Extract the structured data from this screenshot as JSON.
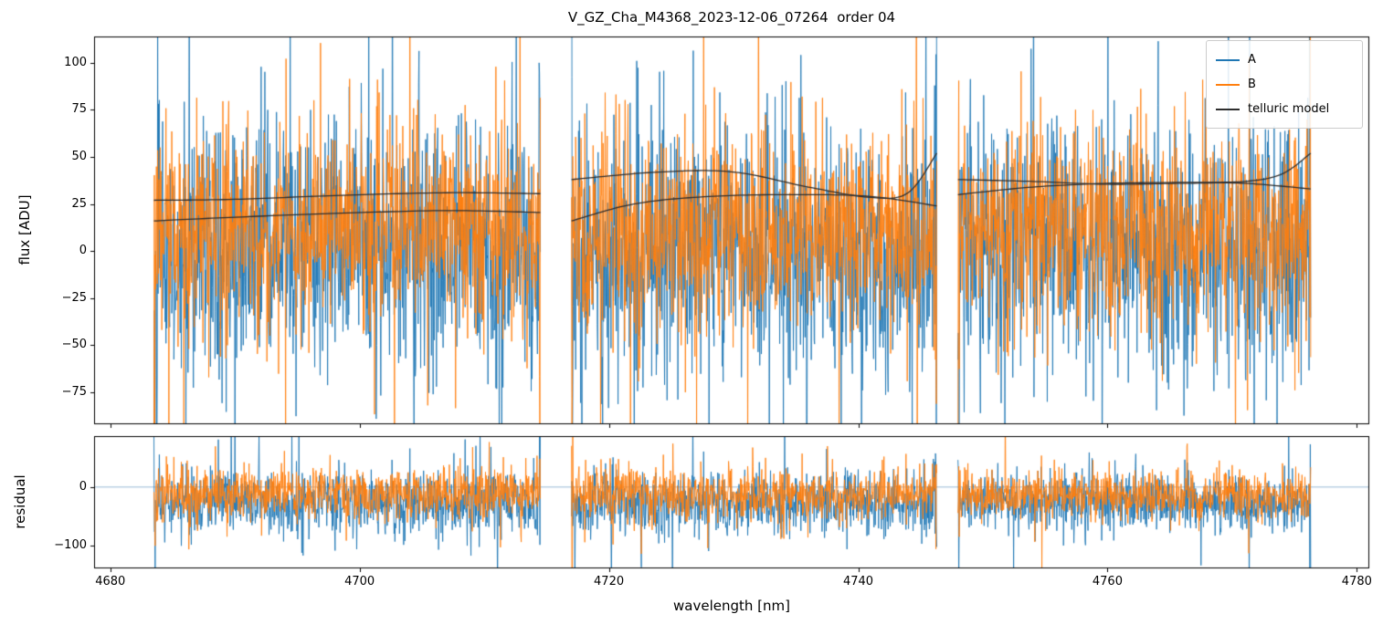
{
  "chart_data": {
    "type": "line",
    "title": "V_GZ_Cha_M4368_2023-12-06_07264  order 04",
    "xlabel": "wavelength [nm]",
    "xlim": [
      4678.7,
      4781.0
    ],
    "xticks": [
      4680,
      4700,
      4720,
      4740,
      4760,
      4780
    ],
    "panels": [
      {
        "id": "flux",
        "ylabel": "flux [ADU]",
        "ylim": [
          -92,
          114
        ],
        "yticks": [
          100,
          75,
          50,
          25,
          0,
          -25,
          -50,
          -75
        ],
        "zero_line": false
      },
      {
        "id": "residual",
        "ylabel": "residual",
        "ylim": [
          -139,
          87
        ],
        "yticks": [
          0,
          -100
        ],
        "zero_line": true,
        "zero_line_color": "#7fa8cc"
      }
    ],
    "legend": [
      {
        "label": "A",
        "color": "#1f77b4"
      },
      {
        "label": "B",
        "color": "#ff7f0e"
      },
      {
        "label": "telluric model",
        "color": "#2e2e2e"
      }
    ],
    "segments": [
      {
        "x_start": 4683.5,
        "x_end": 4714.5
      },
      {
        "x_start": 4717.0,
        "x_end": 4746.3
      },
      {
        "x_start": 4748.0,
        "x_end": 4776.3
      }
    ],
    "telluric_model": {
      "color": "#2e2e2e",
      "segments": [
        {
          "curves": [
            [
              [
                4683.5,
                16
              ],
              [
                4690,
                18
              ],
              [
                4698,
                20
              ],
              [
                4707,
                21.5
              ],
              [
                4714.5,
                20.5
              ]
            ],
            [
              [
                4683.5,
                27
              ],
              [
                4690,
                27.5
              ],
              [
                4698,
                29.5
              ],
              [
                4707,
                31
              ],
              [
                4714.5,
                30.5
              ]
            ]
          ]
        },
        {
          "curves": [
            [
              [
                4717,
                16
              ],
              [
                4722,
                25
              ],
              [
                4728,
                29
              ],
              [
                4735,
                30
              ],
              [
                4741,
                29
              ],
              [
                4746.3,
                24
              ]
            ],
            [
              [
                4717,
                38
              ],
              [
                4724,
                42
              ],
              [
                4730,
                42
              ],
              [
                4736,
                34
              ],
              [
                4741,
                28.5
              ],
              [
                4744,
                31
              ],
              [
                4746.3,
                52
              ]
            ]
          ]
        },
        {
          "curves": [
            [
              [
                4748,
                30
              ],
              [
                4754,
                34
              ],
              [
                4760,
                36
              ],
              [
                4766,
                36.5
              ],
              [
                4771,
                37
              ],
              [
                4774,
                41
              ],
              [
                4776.3,
                52
              ]
            ],
            [
              [
                4748,
                38
              ],
              [
                4754,
                37
              ],
              [
                4760,
                35.5
              ],
              [
                4766,
                36
              ],
              [
                4771,
                36
              ],
              [
                4776.3,
                33
              ]
            ]
          ]
        }
      ]
    },
    "noise": {
      "seed": 42,
      "points_per_nm": 30,
      "flux": {
        "A": {
          "mean": 0,
          "std": 33
        },
        "B": {
          "mean": 12,
          "std": 26
        }
      },
      "residual": {
        "A": {
          "mean": -28,
          "std": 26
        },
        "B": {
          "mean": -12,
          "std": 21
        }
      },
      "spike_prob": 0.05,
      "spike_mult": 2.3,
      "edge_mult": 3.5
    }
  }
}
